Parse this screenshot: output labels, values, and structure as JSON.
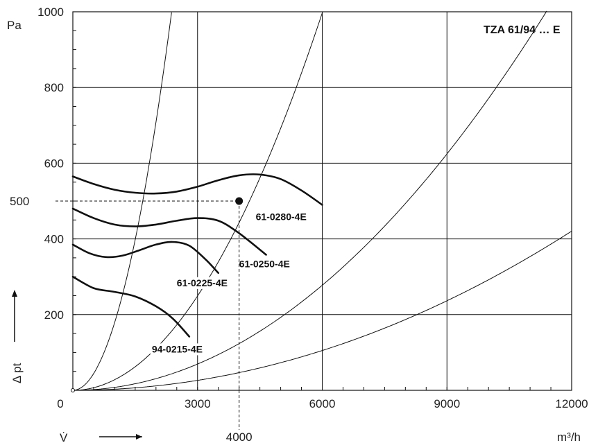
{
  "chart_data": {
    "type": "line",
    "title": "",
    "x_unit": "m³/h",
    "y_unit": "Pa",
    "x_axis_symbol": "V̇",
    "y_axis_symbol": "Δ pt",
    "xlim": [
      0,
      12000
    ],
    "ylim": [
      0,
      1000
    ],
    "x_ticks": [
      0,
      3000,
      6000,
      9000,
      12000
    ],
    "x_tick_labels": [
      "0",
      "3000",
      "6000",
      "9000",
      "12000"
    ],
    "y_ticks": [
      200,
      400,
      600,
      800,
      1000
    ],
    "y_tick_labels": [
      "200",
      "400",
      "600",
      "800",
      "1000"
    ],
    "grid": true,
    "series_title": "TZA 61/94 … E",
    "fan_curves": [
      {
        "name": "61-0280-4E",
        "x": [
          0,
          500,
          1000,
          1500,
          2000,
          2500,
          3000,
          3500,
          4000,
          4500,
          5000,
          5500,
          6000
        ],
        "y": [
          565,
          545,
          530,
          522,
          520,
          525,
          538,
          555,
          568,
          570,
          558,
          528,
          490
        ]
      },
      {
        "name": "61-0250-4E",
        "x": [
          0,
          500,
          1000,
          1500,
          2000,
          2500,
          3000,
          3500,
          4000,
          4650
        ],
        "y": [
          480,
          455,
          438,
          433,
          438,
          448,
          455,
          448,
          415,
          358
        ]
      },
      {
        "name": "61-0225-4E",
        "x": [
          0,
          400,
          800,
          1200,
          1600,
          2000,
          2400,
          2800,
          3200,
          3500
        ],
        "y": [
          385,
          362,
          352,
          356,
          370,
          385,
          392,
          382,
          345,
          310
        ]
      },
      {
        "name": "94-0215-4E",
        "x": [
          0,
          500,
          1000,
          1500,
          2000,
          2400,
          2800
        ],
        "y": [
          300,
          270,
          260,
          248,
          222,
          190,
          142
        ]
      }
    ],
    "system_curves": [
      {
        "label": "",
        "k": 0.000177
      },
      {
        "label": "",
        "k": 2.77e-05
      },
      {
        "label": "",
        "k": 7.71e-06
      },
      {
        "label": "",
        "k": 2.92e-06
      }
    ],
    "operating_point": {
      "x": 4000,
      "y": 500,
      "x_label": "4000",
      "y_label": "500"
    }
  }
}
